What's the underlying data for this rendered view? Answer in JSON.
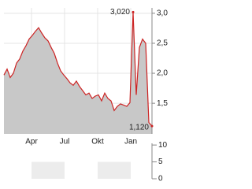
{
  "chart_data": [
    {
      "type": "line",
      "values": [
        1.97,
        2.07,
        1.93,
        2.0,
        2.17,
        2.24,
        2.37,
        2.46,
        2.57,
        2.63,
        2.7,
        2.76,
        2.67,
        2.59,
        2.54,
        2.43,
        2.33,
        2.17,
        2.04,
        1.97,
        1.91,
        1.84,
        1.8,
        1.87,
        1.78,
        1.71,
        1.64,
        1.67,
        1.58,
        1.62,
        1.64,
        1.54,
        1.67,
        1.58,
        1.54,
        1.38,
        1.45,
        1.49,
        1.47,
        1.45,
        1.51,
        3.02,
        1.64,
        2.43,
        2.57,
        2.5,
        1.18,
        1.12
      ],
      "value_labels": [
        null,
        null,
        null,
        null,
        null,
        null,
        null,
        null,
        null,
        null,
        null,
        null,
        null,
        null,
        null,
        null,
        null,
        null,
        null,
        null,
        null,
        null,
        null,
        null,
        null,
        null,
        null,
        null,
        null,
        null,
        null,
        null,
        null,
        null,
        null,
        null,
        null,
        null,
        null,
        null,
        null,
        "3,020",
        null,
        null,
        null,
        null,
        null,
        "1,120"
      ],
      "color": "#cc2222",
      "fill": "#c8c8c8",
      "xlim": [
        0,
        47
      ],
      "xticks": [
        {
          "value": 8.75,
          "label": "Apr"
        },
        {
          "value": 19.25,
          "label": "Jul"
        },
        {
          "value": 29.75,
          "label": "Okt"
        },
        {
          "value": 40.25,
          "label": "Jan"
        }
      ],
      "ylim": [
        0.99,
        3.09
      ],
      "yticks": [
        {
          "value": 1.5,
          "label": "1,5"
        },
        {
          "value": 2.0,
          "label": "2,0"
        },
        {
          "value": 2.5,
          "label": "2,5"
        },
        {
          "value": 3.0,
          "label": "3,0"
        }
      ],
      "grid": true
    },
    {
      "type": "volume",
      "xlim": [
        0,
        47
      ],
      "ylim": [
        0,
        10.5
      ],
      "yticks": [
        10,
        5,
        0
      ]
    }
  ]
}
